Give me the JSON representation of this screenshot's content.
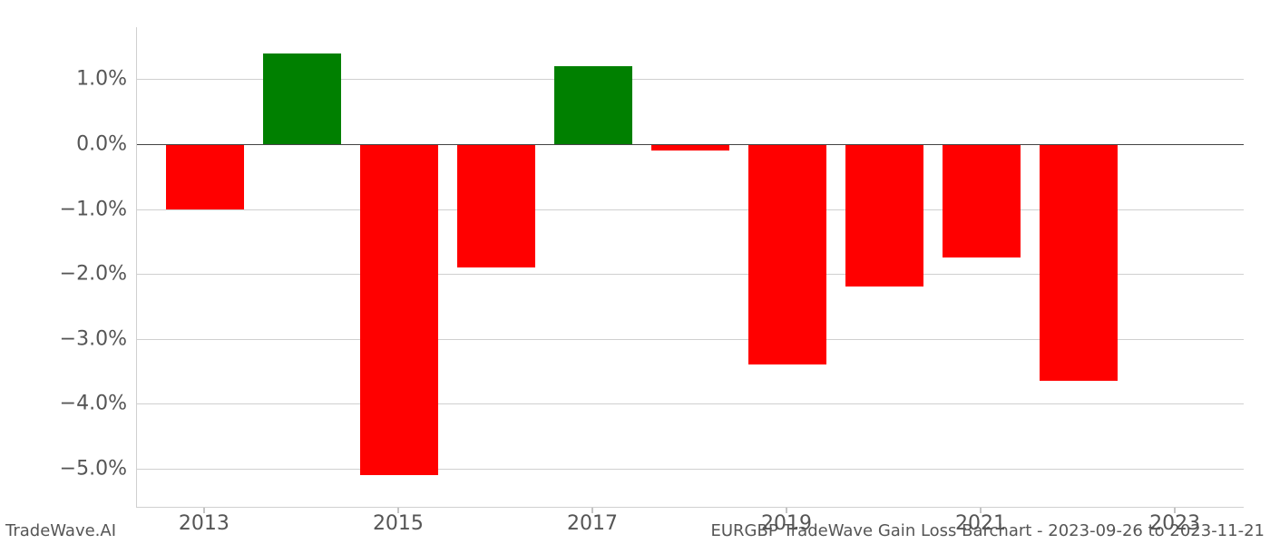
{
  "chart": {
    "type": "bar",
    "years": [
      2013,
      2014,
      2015,
      2016,
      2017,
      2018,
      2019,
      2020,
      2021,
      2022,
      2023
    ],
    "values": [
      -1.0,
      1.4,
      -5.1,
      -1.9,
      1.2,
      -0.1,
      -3.4,
      -2.2,
      -1.75,
      -3.65,
      0.0
    ],
    "bar_colors": [
      "#ff0000",
      "#008000",
      "#ff0000",
      "#ff0000",
      "#008000",
      "#ff0000",
      "#ff0000",
      "#ff0000",
      "#ff0000",
      "#ff0000",
      "#ff0000"
    ],
    "xlim": [
      2012.3,
      2023.7
    ],
    "xticks": [
      2013,
      2015,
      2017,
      2019,
      2021,
      2023
    ],
    "xtick_labels": [
      "2013",
      "2015",
      "2017",
      "2019",
      "2021",
      "2023"
    ],
    "ylim": [
      -5.6,
      1.8
    ],
    "yticks": [
      -5,
      -4,
      -3,
      -2,
      -1,
      0,
      1
    ],
    "ytick_labels": [
      "−5.0%",
      "−4.0%",
      "−3.0%",
      "−2.0%",
      "−1.0%",
      "0.0%",
      "1.0%"
    ],
    "bar_width": 0.8,
    "background_color": "#ffffff",
    "grid_color": "#d0d0d0",
    "label_color": "#555555",
    "label_fontsize": 22
  },
  "footer": {
    "left": "TradeWave.AI",
    "right": "EURGBP TradeWave Gain Loss Barchart - 2023-09-26 to 2023-11-21"
  }
}
